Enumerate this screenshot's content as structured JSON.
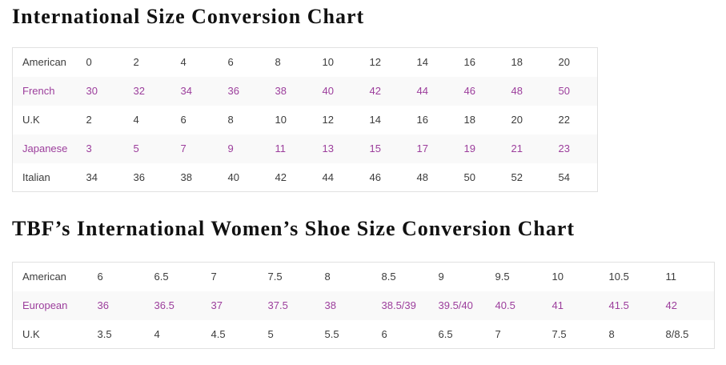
{
  "colors": {
    "accent_purple": "#9C3E9C",
    "text_dark": "#3C3C3C",
    "title_black": "#111111",
    "row_stripe": "#F9F9F9",
    "table_border": "#E1E1E1"
  },
  "section1": {
    "title": "International Size Conversion Chart",
    "table": {
      "rows": [
        {
          "label": "American",
          "accent": false,
          "values": [
            "0",
            "2",
            "4",
            "6",
            "8",
            "10",
            "12",
            "14",
            "16",
            "18",
            "20"
          ]
        },
        {
          "label": "French",
          "accent": true,
          "values": [
            "30",
            "32",
            "34",
            "36",
            "38",
            "40",
            "42",
            "44",
            "46",
            "48",
            "50"
          ]
        },
        {
          "label": "U.K",
          "accent": false,
          "values": [
            "2",
            "4",
            "6",
            "8",
            "10",
            "12",
            "14",
            "16",
            "18",
            "20",
            "22"
          ]
        },
        {
          "label": "Japanese",
          "accent": true,
          "values": [
            "3",
            "5",
            "7",
            "9",
            "11",
            "13",
            "15",
            "17",
            "19",
            "21",
            "23"
          ]
        },
        {
          "label": "Italian",
          "accent": false,
          "values": [
            "34",
            "36",
            "38",
            "40",
            "42",
            "44",
            "46",
            "48",
            "50",
            "52",
            "54"
          ]
        }
      ]
    }
  },
  "section2": {
    "title": "TBF’s International Women’s Shoe Size Conversion Chart",
    "table": {
      "rows": [
        {
          "label": "American",
          "accent": false,
          "values": [
            "6",
            "6.5",
            "7",
            "7.5",
            "8",
            "8.5",
            "9",
            "9.5",
            "10",
            "10.5",
            "11"
          ]
        },
        {
          "label": "European",
          "accent": true,
          "values": [
            "36",
            "36.5",
            "37",
            "37.5",
            "38",
            "38.5/39",
            "39.5/40",
            "40.5",
            "41",
            "41.5",
            "42"
          ]
        },
        {
          "label": "U.K",
          "accent": false,
          "values": [
            "3.5",
            "4",
            "4.5",
            "5",
            "5.5",
            "6",
            "6.5",
            "7",
            "7.5",
            "8",
            "8/8.5"
          ]
        }
      ]
    }
  }
}
